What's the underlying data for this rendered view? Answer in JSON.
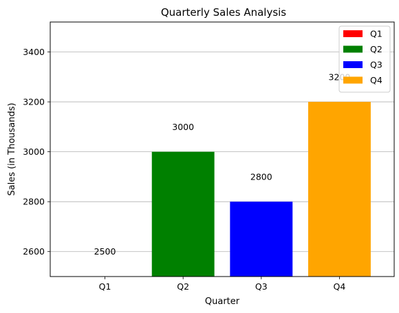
{
  "chart_data": {
    "type": "bar",
    "title": "Quarterly Sales Analysis",
    "xlabel": "Quarter",
    "ylabel": "Sales (in Thousands)",
    "categories": [
      "Q1",
      "Q2",
      "Q3",
      "Q4"
    ],
    "values": [
      2500,
      3000,
      2800,
      3200
    ],
    "data_labels": [
      "2500",
      "3000",
      "2800",
      "3200"
    ],
    "colors": [
      "#ff0000",
      "#008000",
      "#0000ff",
      "#ffa500"
    ],
    "ylim": [
      2500,
      3520
    ],
    "yticks": [
      2600,
      2800,
      3000,
      3200,
      3400
    ],
    "grid": "y-major",
    "legend": {
      "placement": "top-right",
      "entries": [
        "Q1",
        "Q2",
        "Q3",
        "Q4"
      ]
    }
  }
}
